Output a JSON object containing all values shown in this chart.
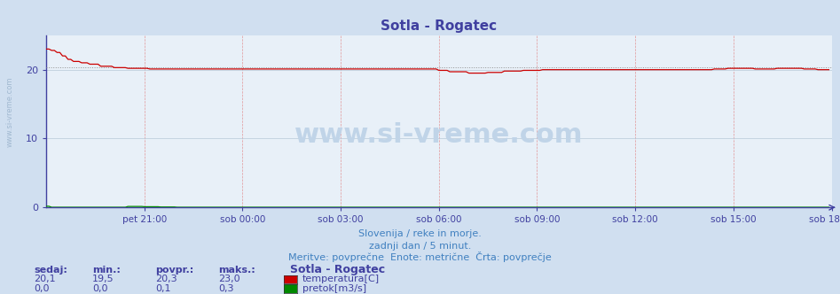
{
  "title": "Sotla - Rogatec",
  "bg_color": "#d0dff0",
  "plot_bg_color": "#e8f0f8",
  "title_color": "#4040a0",
  "axis_color": "#4040a0",
  "tick_color": "#4040a0",
  "grid_color_h": "#b8c8d8",
  "grid_color_v": "#e08080",
  "ylim": [
    0,
    25
  ],
  "yticks": [
    0,
    10,
    20
  ],
  "xtick_labels": [
    "pet 21:00",
    "sob 00:00",
    "sob 03:00",
    "sob 06:00",
    "sob 09:00",
    "sob 12:00",
    "sob 15:00",
    "sob 18:00"
  ],
  "subtitle_lines": [
    "Slovenija / reke in morje.",
    "zadnji dan / 5 minut.",
    "Meritve: povprečne  Enote: metrične  Črta: povprečje"
  ],
  "subtitle_color": "#4080c0",
  "table_header": [
    "sedaj:",
    "min.:",
    "povpr.:",
    "maks.:"
  ],
  "table_color": "#4040a0",
  "station_name": "Sotla - Rogatec",
  "rows": [
    {
      "values": [
        "20,1",
        "19,5",
        "20,3",
        "23,0"
      ],
      "label": "temperatura[C]",
      "color": "#cc0000"
    },
    {
      "values": [
        "0,0",
        "0,0",
        "0,1",
        "0,3"
      ],
      "label": "pretok[m3/s]",
      "color": "#008800"
    }
  ],
  "watermark": "www.si-vreme.com",
  "watermark_color": "#c0d4e8",
  "side_label": "www.si-vreme.com",
  "side_label_color": "#a0b8d0",
  "avg_line_color": "#909090",
  "avg_line_value": 20.3,
  "temp_line_color": "#cc0000",
  "flow_line_color": "#008800"
}
